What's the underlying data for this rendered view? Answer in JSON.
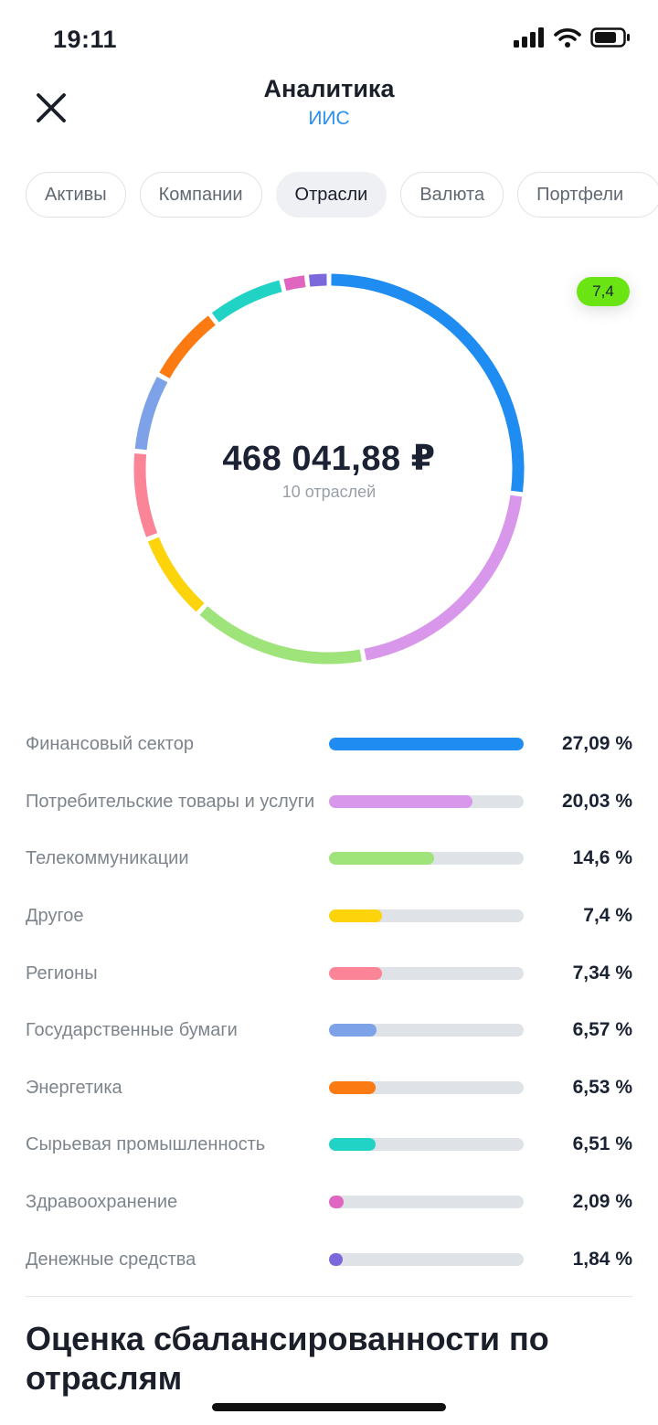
{
  "status_bar": {
    "time": "19:11",
    "icons": [
      "cellular-signal-icon",
      "wifi-icon",
      "battery-icon"
    ]
  },
  "header": {
    "title": "Аналитика",
    "subtitle": "ИИС",
    "close_icon": "close-icon"
  },
  "tabs": [
    {
      "label": "Активы",
      "active": false
    },
    {
      "label": "Компании",
      "active": false
    },
    {
      "label": "Отрасли",
      "active": true
    },
    {
      "label": "Валюта",
      "active": false
    },
    {
      "label": "Портфели",
      "active": false
    }
  ],
  "summary": {
    "total": "468 041,88 ₽",
    "caption": "10 отраслей"
  },
  "tooltip": {
    "value": "7,4",
    "color": "#6be414"
  },
  "chart_data": {
    "type": "donut",
    "total": "468 041,88 ₽",
    "categories": [
      "Финансовый сектор",
      "Потребительские товары и услуги",
      "Телекоммуникации",
      "Другое",
      "Регионы",
      "Государственные бумаги",
      "Энергетика",
      "Сырьевая промышленность",
      "Здравоохранение",
      "Денежные средства"
    ],
    "values": [
      27.09,
      20.03,
      14.6,
      7.4,
      7.34,
      6.57,
      6.53,
      6.51,
      2.09,
      1.84
    ],
    "colors": [
      "#1e8cf0",
      "#d997ec",
      "#9fe37b",
      "#fdd40b",
      "#fb8596",
      "#7ea2e8",
      "#fb7a12",
      "#21d3c5",
      "#e065c0",
      "#7b69db"
    ]
  },
  "legend": [
    {
      "label": "Финансовый сектор",
      "value": "27,09 %"
    },
    {
      "label": "Потребительские товары и услуги",
      "value": "20,03 %"
    },
    {
      "label": "Телекоммуникации",
      "value": "14,6 %"
    },
    {
      "label": "Другое",
      "value": "7,4 %"
    },
    {
      "label": "Регионы",
      "value": "7,34 %"
    },
    {
      "label": "Государственные бумаги",
      "value": "6,57 %"
    },
    {
      "label": "Энергетика",
      "value": "6,53 %"
    },
    {
      "label": "Сырьевая промышленность",
      "value": "6,51 %"
    },
    {
      "label": "Здравоохранение",
      "value": "2,09 %"
    },
    {
      "label": "Денежные средства",
      "value": "1,84 %"
    }
  ],
  "section": {
    "title": "Оценка сбалансированности по отраслям"
  }
}
